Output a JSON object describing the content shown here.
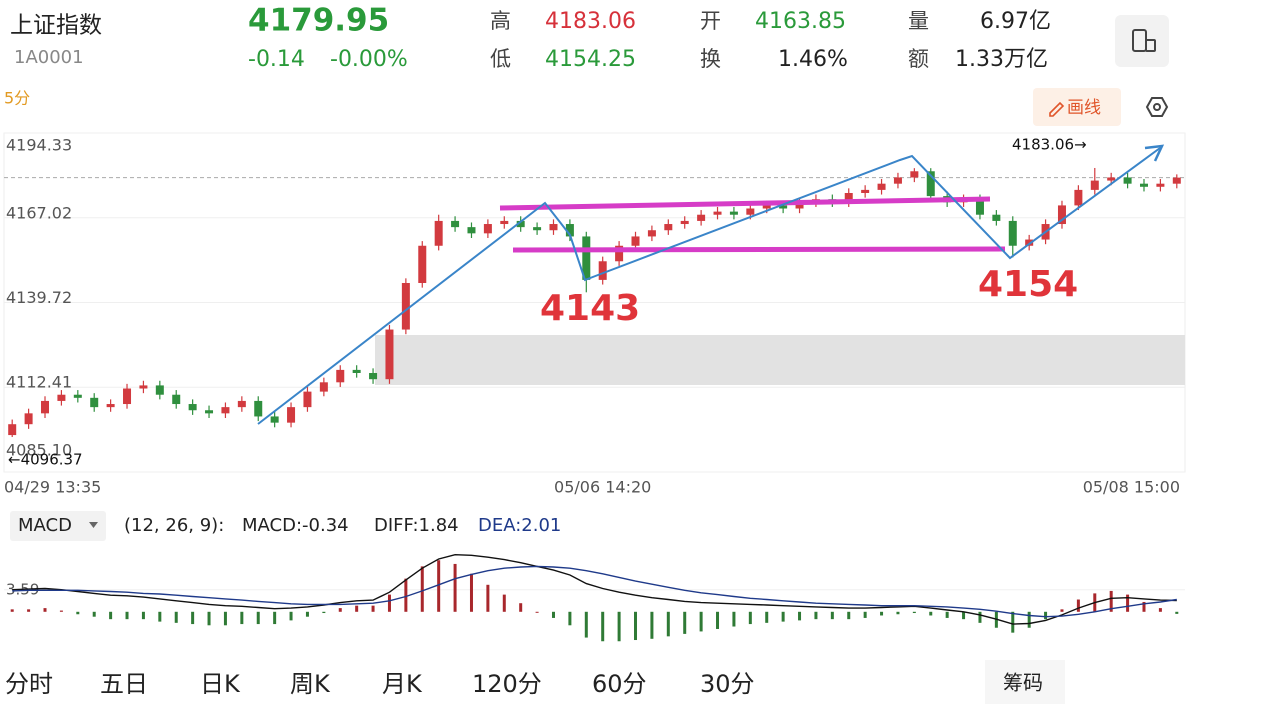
{
  "header": {
    "name": "上证指数",
    "code": "1A0001",
    "price": "4179.95",
    "change": "-0.14",
    "change_pct": "-0.00%",
    "high_label": "高",
    "high": "4183.06",
    "low_label": "低",
    "low": "4154.25",
    "open_label": "开",
    "open": "4163.85",
    "turnover_label": "换",
    "turnover": "1.46%",
    "volume_label": "量",
    "volume": "6.97亿",
    "amount_label": "额",
    "amount": "1.33万亿"
  },
  "toolbar": {
    "period": "5分",
    "draw_button": "画线"
  },
  "chart_data": [
    {
      "type": "candlestick",
      "up_color": "#d23a3f",
      "down_color": "#2f8f3e",
      "grid": true,
      "categories": [
        "04/29 13:35",
        null,
        null,
        null,
        null,
        null,
        null,
        null,
        null,
        null,
        null,
        null,
        null,
        null,
        null,
        null,
        null,
        null,
        null,
        null,
        null,
        null,
        null,
        null,
        null,
        null,
        null,
        null,
        null,
        null,
        null,
        null,
        null,
        null,
        null,
        null,
        "05/06 14:20",
        null,
        null,
        null,
        null,
        null,
        null,
        null,
        null,
        null,
        null,
        null,
        null,
        null,
        null,
        null,
        null,
        null,
        null,
        null,
        null,
        null,
        null,
        null,
        null,
        null,
        null,
        null,
        null,
        null,
        null,
        null,
        null,
        null,
        null,
        "05/08 15:00"
      ],
      "open": [
        4097,
        4100.5,
        4104,
        4108,
        4110,
        4109,
        4106,
        4107,
        4112,
        4113,
        4110,
        4107,
        4105,
        4104,
        4106,
        4108,
        4103,
        4101,
        4106,
        4111,
        4114,
        4118,
        4117,
        4115,
        4131,
        4146,
        4158,
        4166,
        4164,
        4162,
        4165,
        4166,
        4164,
        4163,
        4165,
        4161,
        4147,
        4153,
        4158,
        4161,
        4163,
        4165,
        4166,
        4168,
        4169,
        4168,
        4170,
        4171,
        4170,
        4172,
        4173,
        4172,
        4175,
        4176,
        4178,
        4180,
        4182,
        4174,
        4172,
        4173,
        4168,
        4166,
        4158,
        4160,
        4165,
        4171,
        4176,
        4179,
        4180,
        4178,
        4177,
        4178
      ],
      "high": [
        4102,
        4105.5,
        4109.5,
        4111.5,
        4111.5,
        4110.5,
        4108.5,
        4113.5,
        4114.5,
        4114.5,
        4111.5,
        4108.5,
        4106.5,
        4107.5,
        4109.5,
        4109.5,
        4104.5,
        4107.5,
        4112.5,
        4115.5,
        4119.5,
        4119.5,
        4118.5,
        4132.5,
        4147.5,
        4159.5,
        4168,
        4167.5,
        4165.5,
        4166.5,
        4167.5,
        4167.5,
        4165.5,
        4166.5,
        4166.5,
        4162.5,
        4154.5,
        4159.5,
        4162.5,
        4164.5,
        4166.5,
        4167.5,
        4169.5,
        4170.5,
        4170.5,
        4171.5,
        4172.5,
        4172.5,
        4173.5,
        4174.5,
        4174.5,
        4176.5,
        4177.5,
        4179.5,
        4181.5,
        4183,
        4183,
        4175.5,
        4174.5,
        4174.5,
        4169.5,
        4167.5,
        4161.5,
        4166.5,
        4172.5,
        4177.5,
        4183.06,
        4181.5,
        4181.5,
        4179.5,
        4179.5,
        4181
      ],
      "low": [
        4096.37,
        4099,
        4102.5,
        4106.5,
        4107.5,
        4104.5,
        4104.5,
        4105.5,
        4110.5,
        4108.5,
        4105.5,
        4103.5,
        4102.5,
        4102.5,
        4104.5,
        4101.5,
        4099.5,
        4099.5,
        4104.5,
        4109.5,
        4112.5,
        4115.5,
        4113.5,
        4113.5,
        4129.5,
        4144.5,
        4156.5,
        4162.5,
        4160.5,
        4160.5,
        4163.5,
        4162.5,
        4161.5,
        4161.5,
        4159.5,
        4143,
        4145.5,
        4151.5,
        4156.5,
        4159.5,
        4161.5,
        4163.5,
        4164.5,
        4166.5,
        4166.5,
        4166.5,
        4168.5,
        4168.5,
        4168.5,
        4170.5,
        4170.5,
        4170.5,
        4173.5,
        4174.5,
        4176.5,
        4178.5,
        4172.5,
        4170.5,
        4170.5,
        4166.5,
        4164.5,
        4154.25,
        4156.5,
        4158.5,
        4163.5,
        4169.5,
        4174.5,
        4177.5,
        4176.5,
        4175.5,
        4175.5,
        4176.5
      ],
      "close": [
        4100.5,
        4104,
        4108,
        4110,
        4109,
        4106,
        4107,
        4112,
        4113,
        4110,
        4107,
        4105,
        4104,
        4106,
        4108,
        4103,
        4101,
        4106,
        4111,
        4114,
        4118,
        4117,
        4115,
        4131,
        4146,
        4158,
        4166,
        4164,
        4162,
        4165,
        4166,
        4164,
        4163,
        4165,
        4161,
        4147,
        4153,
        4158,
        4161,
        4163,
        4165,
        4166,
        4168,
        4169,
        4168,
        4170,
        4171,
        4170,
        4172,
        4173,
        4172,
        4175,
        4176,
        4178,
        4180,
        4182,
        4174,
        4172,
        4173,
        4168,
        4166,
        4158,
        4160,
        4165,
        4171,
        4176,
        4179,
        4180,
        4178,
        4177,
        4178,
        4179.95
      ],
      "ylim": [
        4085.1,
        4194.33
      ],
      "yticks": [
        {
          "value": 4085.1,
          "label": "4085.10"
        },
        4112.41,
        4139.72,
        4167.02,
        4194.33
      ],
      "annotations": [
        "4143",
        "4154"
      ],
      "high_marker": "4183.06→",
      "low_marker": "←4096.37"
    },
    {
      "type": "macd",
      "indicator": "MACD",
      "params": "(12, 26, 9):",
      "macd_label": "MACD:-0.34",
      "diff_label": "DIFF:1.84",
      "dea_label": "DEA:2.01",
      "diff_color": "#111111",
      "dea_color": "#1f3a8a",
      "up_color": "#a8272c",
      "down_color": "#2f7a35",
      "diff": [
        3.6,
        3.7,
        3.8,
        3.6,
        3.3,
        3.0,
        2.7,
        2.6,
        2.4,
        2.1,
        1.8,
        1.5,
        1.2,
        1.0,
        0.9,
        0.7,
        0.5,
        0.6,
        0.8,
        1.1,
        1.5,
        1.8,
        1.9,
        3.2,
        5.2,
        7.1,
        8.6,
        9.3,
        9.2,
        8.9,
        8.5,
        8.0,
        7.4,
        6.8,
        6.0,
        4.6,
        3.8,
        3.2,
        2.7,
        2.3,
        2.0,
        1.7,
        1.5,
        1.4,
        1.3,
        1.2,
        1.1,
        1.0,
        0.9,
        0.8,
        0.7,
        0.6,
        0.6,
        0.7,
        0.8,
        0.9,
        0.6,
        0.3,
        0.0,
        -0.5,
        -1.2,
        -2.0,
        -1.9,
        -1.4,
        -0.5,
        0.6,
        1.5,
        2.2,
        2.3,
        2.1,
        1.9,
        1.84
      ],
      "dea": [
        3.4,
        3.5,
        3.5,
        3.5,
        3.5,
        3.4,
        3.3,
        3.2,
        3.0,
        2.9,
        2.7,
        2.5,
        2.3,
        2.1,
        1.9,
        1.7,
        1.5,
        1.3,
        1.2,
        1.2,
        1.2,
        1.3,
        1.4,
        1.8,
        2.5,
        3.4,
        4.4,
        5.4,
        6.1,
        6.7,
        7.1,
        7.3,
        7.4,
        7.3,
        7.1,
        6.7,
        6.2,
        5.6,
        5.0,
        4.5,
        4.0,
        3.5,
        3.1,
        2.8,
        2.5,
        2.2,
        2.0,
        1.8,
        1.6,
        1.4,
        1.3,
        1.2,
        1.1,
        1.0,
        1.0,
        1.0,
        0.9,
        0.8,
        0.6,
        0.4,
        0.1,
        -0.3,
        -0.6,
        -0.8,
        -0.7,
        -0.4,
        0.0,
        0.5,
        0.9,
        1.3,
        1.6,
        2.01
      ],
      "macd": [
        0.4,
        0.4,
        0.6,
        0.2,
        -0.4,
        -0.8,
        -1.2,
        -1.2,
        -1.2,
        -1.6,
        -1.8,
        -2.0,
        -2.2,
        -2.2,
        -2.0,
        -2.0,
        -2.0,
        -1.4,
        -0.8,
        -0.2,
        0.6,
        1.0,
        1.0,
        2.8,
        5.4,
        7.4,
        8.4,
        7.8,
        6.2,
        4.4,
        2.8,
        1.4,
        0,
        -1.0,
        -2.2,
        -4.2,
        -4.8,
        -4.8,
        -4.6,
        -4.4,
        -4.0,
        -3.6,
        -3.2,
        -2.8,
        -2.4,
        -2.0,
        -1.8,
        -1.6,
        -1.4,
        -1.2,
        -1.2,
        -1.2,
        -1.0,
        -0.6,
        -0.4,
        -0.2,
        -0.6,
        -1.0,
        -1.2,
        -1.8,
        -2.6,
        -3.4,
        -2.6,
        -1.2,
        0.4,
        2.0,
        3.0,
        3.4,
        2.8,
        1.6,
        0.6,
        -0.34
      ],
      "ylim": [
        -5.9,
        11.7
      ],
      "yticks": [
        3.59
      ]
    }
  ],
  "tabs": [
    "分时",
    "五日",
    "日K",
    "周K",
    "月K",
    "120分",
    "60分",
    "30分"
  ],
  "chip": "筹码"
}
